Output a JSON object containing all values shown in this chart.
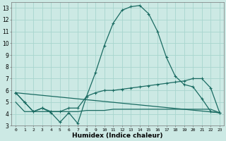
{
  "xlabel": "Humidex (Indice chaleur)",
  "background_color": "#cce9e4",
  "grid_color": "#a8d5ce",
  "line_color": "#1a6b62",
  "xlim": [
    -0.5,
    23.5
  ],
  "ylim": [
    3,
    13.5
  ],
  "yticks": [
    3,
    4,
    5,
    6,
    7,
    8,
    9,
    10,
    11,
    12,
    13
  ],
  "xticks": [
    0,
    1,
    2,
    3,
    4,
    5,
    6,
    7,
    8,
    9,
    10,
    11,
    12,
    13,
    14,
    15,
    16,
    17,
    18,
    19,
    20,
    21,
    22,
    23
  ],
  "line1_x": [
    0,
    1,
    2,
    3,
    4,
    5,
    6,
    7,
    8,
    9,
    10,
    11,
    12,
    13,
    14,
    15,
    16,
    17,
    18,
    19,
    20,
    21,
    22,
    23
  ],
  "line1_y": [
    5.8,
    5.0,
    4.2,
    4.5,
    4.1,
    3.3,
    4.1,
    3.2,
    5.5,
    7.5,
    9.8,
    11.7,
    12.8,
    13.1,
    13.2,
    12.5,
    11.0,
    8.8,
    7.2,
    6.5,
    6.3,
    5.3,
    4.2,
    4.1
  ],
  "line2_x": [
    0,
    1,
    2,
    3,
    4,
    5,
    6,
    7,
    8,
    9,
    10,
    11,
    12,
    13,
    14,
    15,
    16,
    17,
    18,
    19,
    20,
    21,
    22,
    23
  ],
  "line2_y": [
    5.8,
    5.0,
    4.2,
    4.5,
    4.2,
    4.2,
    4.5,
    4.5,
    5.5,
    5.8,
    6.0,
    6.0,
    6.1,
    6.2,
    6.3,
    6.4,
    6.5,
    6.6,
    6.7,
    6.8,
    7.0,
    7.0,
    6.2,
    4.1
  ],
  "line3_x": [
    0,
    1,
    2,
    3,
    4,
    5,
    6,
    7,
    8,
    9,
    10,
    11,
    12,
    13,
    14,
    15,
    16,
    17,
    18,
    19,
    20,
    21,
    22,
    23
  ],
  "line3_y": [
    5.0,
    4.2,
    4.2,
    4.2,
    4.2,
    4.2,
    4.2,
    4.2,
    4.3,
    4.3,
    4.3,
    4.4,
    4.4,
    4.4,
    4.4,
    4.4,
    4.4,
    4.4,
    4.4,
    4.4,
    4.4,
    4.4,
    4.4,
    4.1
  ],
  "line4_x": [
    0,
    23
  ],
  "line4_y": [
    5.8,
    4.1
  ]
}
